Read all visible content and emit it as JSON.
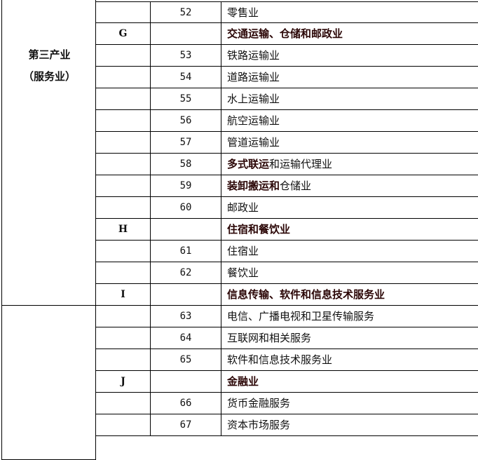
{
  "sector": {
    "line1": "第三产业",
    "line2": "（服务业）"
  },
  "rows": [
    {
      "letter": "",
      "code": "52",
      "name": [
        {
          "t": "零售业",
          "b": false
        }
      ]
    },
    {
      "letter": "G",
      "code": "",
      "name": [
        {
          "t": "交通运输、仓储和邮政业",
          "b": true
        }
      ]
    },
    {
      "letter": "",
      "code": "53",
      "name": [
        {
          "t": "铁路运输业",
          "b": false
        }
      ]
    },
    {
      "letter": "",
      "code": "54",
      "name": [
        {
          "t": "道路运输业",
          "b": false
        }
      ]
    },
    {
      "letter": "",
      "code": "55",
      "name": [
        {
          "t": "水上运输业",
          "b": false
        }
      ]
    },
    {
      "letter": "",
      "code": "56",
      "name": [
        {
          "t": "航空运输业",
          "b": false
        }
      ]
    },
    {
      "letter": "",
      "code": "57",
      "name": [
        {
          "t": "管道运输业",
          "b": false
        }
      ]
    },
    {
      "letter": "",
      "code": "58",
      "name": [
        {
          "t": "多式联运",
          "b": true
        },
        {
          "t": "和运输代理业",
          "b": false
        }
      ]
    },
    {
      "letter": "",
      "code": "59",
      "name": [
        {
          "t": "装卸搬运和",
          "b": true
        },
        {
          "t": "仓储业",
          "b": false
        }
      ]
    },
    {
      "letter": "",
      "code": "60",
      "name": [
        {
          "t": "邮政业",
          "b": false
        }
      ]
    },
    {
      "letter": "H",
      "code": "",
      "name": [
        {
          "t": "住宿和餐饮业",
          "b": true
        }
      ]
    },
    {
      "letter": "",
      "code": "61",
      "name": [
        {
          "t": "住宿业",
          "b": false
        }
      ]
    },
    {
      "letter": "",
      "code": "62",
      "name": [
        {
          "t": "餐饮业",
          "b": false
        }
      ]
    },
    {
      "letter": "I",
      "code": "",
      "name": [
        {
          "t": "信息传输、软件和信息技术服务业",
          "b": true
        }
      ]
    },
    {
      "letter": "",
      "code": "63",
      "name": [
        {
          "t": "电信、广播电视和卫星传输服务",
          "b": false
        }
      ]
    },
    {
      "letter": "",
      "code": "64",
      "name": [
        {
          "t": "互联网和相关服务",
          "b": false
        }
      ]
    },
    {
      "letter": "",
      "code": "65",
      "name": [
        {
          "t": "软件和信息技术服务业",
          "b": false
        }
      ]
    },
    {
      "letter": "J",
      "code": "",
      "name": [
        {
          "t": "金融业",
          "b": true
        }
      ]
    },
    {
      "letter": "",
      "code": "66",
      "name": [
        {
          "t": "货币金融服务",
          "b": false
        }
      ]
    },
    {
      "letter": "",
      "code": "67",
      "name": [
        {
          "t": "资本市场服务",
          "b": false
        }
      ]
    }
  ]
}
